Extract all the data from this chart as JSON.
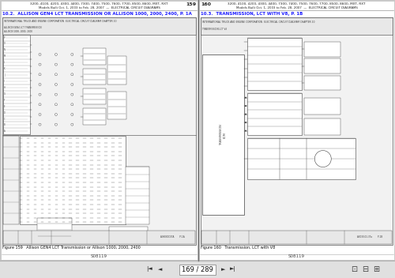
{
  "bg_color": "#c8c8c8",
  "page_bg": "#ffffff",
  "divider_color": "#707070",
  "nav_bar_color": "#e0e0e0",
  "nav_bar_height": 22,
  "left_page": {
    "header_page_num": "159",
    "header_top_text": "3200, 4100, 4200, 4300, 4400, 7300, 7400, 7500, 7600, 7700, 8500, 8600, MXT, RXT",
    "header_sub_text": "Models Built Oct. 1, 2003 to Feb. 28, 2007  —  ELECTRICAL CIRCUIT DIAGRAMS",
    "section_title": "10.2.  ALLISON GEN4 LCT TRANSMISSION OR ALLISON 1000, 2000, 2400, P. 1A",
    "section_title_color": "#1a1aff",
    "figure_caption": "Figure 159   Allison GEN4 LCT Transmission or Allison 1000, 2000, 2400",
    "footer_text": "S08119"
  },
  "right_page": {
    "header_page_num": "160",
    "header_top_text": "3200, 4100, 4200, 4300, 4400, 7300, 7400, 7500, 7600, 7700, 8500, 8600, MXT, RXT",
    "header_sub_text": "Models Built Oct. 1, 2003 to Feb. 28, 2007  —  ELECTRICAL CIRCUIT DIAGRAMS",
    "section_title": "10.3.  TRANSMISSION, LCT WITH V8, P. 1B",
    "section_title_color": "#1a1aff",
    "figure_caption": "Figure 160   Transmission, LCT with V8",
    "footer_text": "S08119"
  },
  "nav_text": "169 / 289"
}
